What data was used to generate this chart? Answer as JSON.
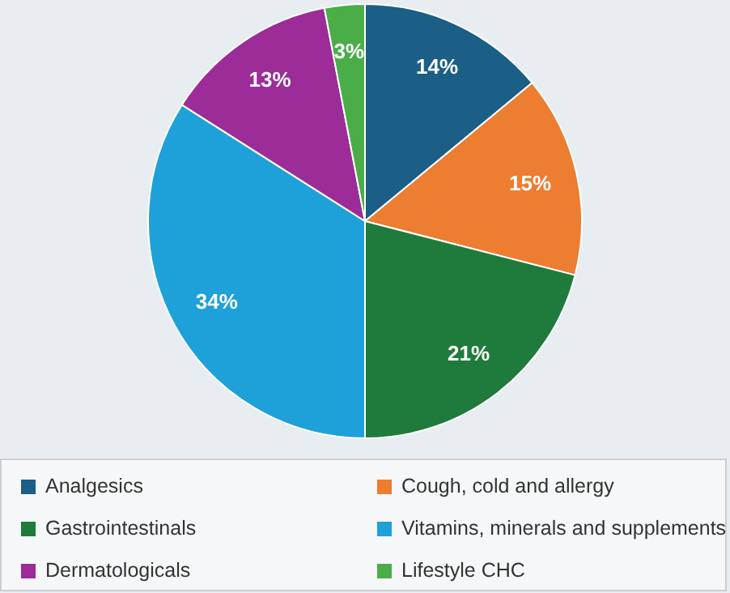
{
  "chart_data": {
    "type": "pie",
    "categories": [
      "Analgesics",
      "Cough, cold and allergy",
      "Gastrointestinals",
      "Vitamins, minerals and supplements",
      "Dermatologicals",
      "Lifestyle CHC"
    ],
    "values": [
      14,
      15,
      21,
      34,
      13,
      3
    ],
    "colors": [
      "#1b5e86",
      "#ed7d31",
      "#1e7b3b",
      "#1ea1d9",
      "#9b2c98",
      "#4aad48"
    ],
    "value_labels": [
      "14%",
      "15%",
      "21%",
      "34%",
      "13%",
      "3%"
    ],
    "legend": "bottom"
  }
}
